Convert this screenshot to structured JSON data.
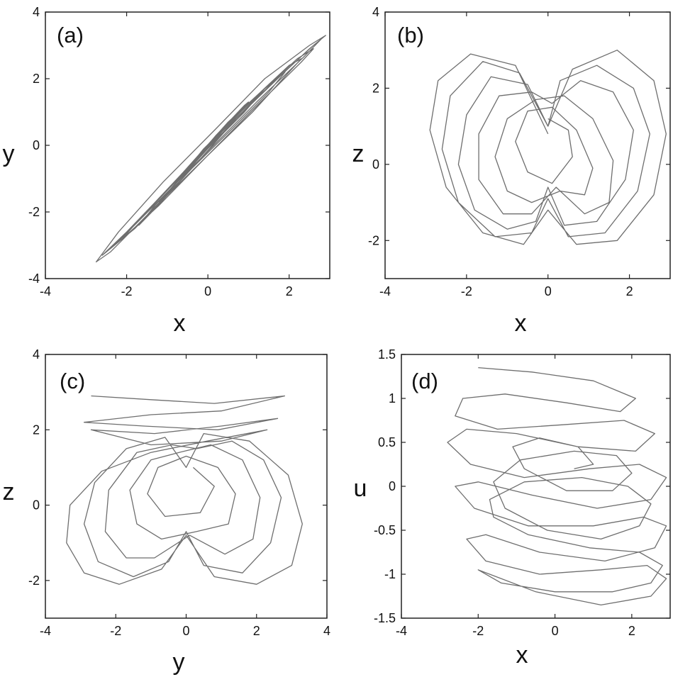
{
  "figure": {
    "line_color": "#6e6e6e",
    "axis_color": "#222222",
    "background": "#ffffff"
  },
  "chart_data": [
    {
      "type": "line",
      "panel_label": "(a)",
      "title": "",
      "xlabel": "x",
      "ylabel": "y",
      "xlim": [
        -4,
        3
      ],
      "ylim": [
        -4,
        4
      ],
      "xticks": [
        -4,
        -2,
        0,
        2
      ],
      "yticks": [
        -4,
        -2,
        0,
        2,
        4
      ],
      "grid": false,
      "projection": [
        "x",
        "y"
      ],
      "series": [
        {
          "x": [
            0,
            1.7,
            2.6,
            2.9,
            2.5,
            1.4,
            0.2,
            -1.1,
            -2.2,
            -2.75,
            -2.4,
            -1.5,
            -0.4,
            0.7,
            1.8,
            2.5,
            2.8,
            2.4,
            1.2,
            -0.1,
            -1.4,
            -2.3,
            -2.6,
            -2.0,
            -0.9,
            0.3,
            1.4,
            2.2,
            2.6,
            2.3,
            1.3,
            0.0,
            -1.2,
            -2.1,
            -2.4,
            -1.9,
            -0.8,
            0.4,
            1.3,
            2.0,
            2.3,
            2.0,
            1.1,
            0.0,
            -1.0,
            -1.8,
            -2.1,
            -1.6,
            -0.6,
            0.5,
            1.3,
            1.8,
            1.9,
            1.5,
            0.6,
            -0.4,
            -1.3,
            -1.7,
            -1.3,
            -0.3,
            0.7,
            1.3,
            1.4,
            0.9,
            0.0,
            -0.9,
            -1.2,
            -0.7,
            0.2,
            0.9,
            1.0,
            0.4,
            -0.4,
            -0.8,
            -0.4,
            0.3,
            0.6,
            0.2,
            -0.3,
            -0.1,
            0.4
          ],
          "y": [
            0,
            2.0,
            3.0,
            3.3,
            3.0,
            2.0,
            0.5,
            -1.1,
            -2.6,
            -3.5,
            -3.2,
            -2.1,
            -0.7,
            0.8,
            2.1,
            2.9,
            3.2,
            2.7,
            1.3,
            -0.3,
            -1.9,
            -3.0,
            -3.3,
            -2.6,
            -1.2,
            0.3,
            1.7,
            2.6,
            2.9,
            2.5,
            1.3,
            -0.3,
            -1.8,
            -2.8,
            -3.1,
            -2.5,
            -1.1,
            0.5,
            1.6,
            2.4,
            2.6,
            2.2,
            1.0,
            -0.3,
            -1.5,
            -2.5,
            -2.8,
            -2.1,
            -0.8,
            0.7,
            1.6,
            2.1,
            2.2,
            1.6,
            0.5,
            -0.7,
            -1.9,
            -2.4,
            -1.8,
            -0.5,
            0.9,
            1.6,
            1.7,
            1.0,
            -0.1,
            -1.3,
            -1.7,
            -1.0,
            0.3,
            1.2,
            1.3,
            0.5,
            -0.6,
            -1.1,
            -0.6,
            0.4,
            0.8,
            0.2,
            -0.4,
            -0.1,
            0.5
          ]
        }
      ]
    },
    {
      "type": "line",
      "panel_label": "(b)",
      "title": "",
      "xlabel": "x",
      "ylabel": "z",
      "xlim": [
        -4,
        3
      ],
      "ylim": [
        -3,
        4
      ],
      "xticks": [
        -4,
        -2,
        0,
        2
      ],
      "yticks": [
        -2,
        0,
        2,
        4
      ],
      "grid": false,
      "projection": [
        "x",
        "z"
      ],
      "series": [
        {
          "x": [
            0,
            -0.8,
            -1.9,
            -2.7,
            -2.9,
            -2.5,
            -1.6,
            -0.6,
            0,
            0.7,
            1.7,
            2.6,
            2.9,
            2.6,
            1.7,
            0.6,
            0,
            -0.7,
            -1.6,
            -2.4,
            -2.6,
            -2.2,
            -1.3,
            -0.4,
            0,
            0.5,
            1.4,
            2.2,
            2.5,
            2.1,
            1.2,
            0.3,
            0,
            -0.5,
            -1.4,
            -2.0,
            -2.2,
            -1.8,
            -1.0,
            -0.3,
            0,
            0.4,
            1.2,
            1.9,
            2.1,
            1.6,
            0.8,
            0.1,
            -0.4,
            -1.2,
            -1.7,
            -1.7,
            -1.1,
            -0.4,
            0.2,
            0.9,
            1.5,
            1.6,
            1.1,
            0.4,
            -0.3,
            -1.0,
            -1.3,
            -1.0,
            -0.4,
            0.3,
            0.9,
            1.1,
            0.7,
            0.1,
            -0.5,
            -0.8,
            -0.5,
            0.1,
            0.6,
            0.5,
            0
          ],
          "y": [
            0.8,
            2.6,
            2.9,
            2.2,
            0.9,
            -0.6,
            -1.8,
            -2.1,
            -1.2,
            -2.1,
            -2.0,
            -0.8,
            0.8,
            2.2,
            3.0,
            2.5,
            1.0,
            2.4,
            2.7,
            1.8,
            0.4,
            -1.0,
            -1.9,
            -1.8,
            -0.9,
            -1.9,
            -1.8,
            -0.7,
            0.8,
            2.0,
            2.6,
            2.2,
            1.0,
            2.1,
            2.3,
            1.3,
            0.0,
            -1.2,
            -1.7,
            -1.5,
            -0.6,
            -1.6,
            -1.5,
            -0.4,
            0.9,
            1.9,
            2.2,
            1.6,
            1.9,
            1.8,
            0.8,
            -0.4,
            -1.3,
            -1.3,
            -0.6,
            -1.3,
            -1.0,
            0.1,
            1.2,
            1.8,
            1.7,
            1.2,
            0.2,
            -0.7,
            -1.0,
            -0.7,
            -0.8,
            -0.1,
            0.9,
            1.5,
            1.4,
            0.6,
            -0.2,
            -0.5,
            0.2,
            0.9,
            1.2
          ]
        }
      ]
    },
    {
      "type": "line",
      "panel_label": "(c)",
      "title": "",
      "xlabel": "y",
      "ylabel": "z",
      "xlim": [
        -4,
        4
      ],
      "ylim": [
        -3,
        4
      ],
      "xticks": [
        -4,
        -2,
        0,
        2,
        4
      ],
      "yticks": [
        -2,
        0,
        2,
        4
      ],
      "grid": false,
      "projection": [
        "y",
        "z"
      ],
      "series": [
        {
          "x": [
            -2.7,
            -1.0,
            0.8,
            2.8,
            1.0,
            -1.0,
            -2.9,
            -1.2,
            0.9,
            2.6,
            1.0,
            -0.9,
            -2.7,
            -1.0,
            1.0,
            2.3,
            0.6,
            -1.0,
            -2.4,
            -3.3,
            -3.4,
            -2.9,
            -1.9,
            -0.7,
            0,
            0.8,
            2.0,
            3.0,
            3.3,
            2.9,
            1.8,
            0.5,
            0,
            -0.6,
            -1.7,
            -2.6,
            -2.9,
            -2.5,
            -1.5,
            -0.5,
            0,
            0.5,
            1.6,
            2.4,
            2.7,
            2.2,
            1.3,
            0.3,
            -0.4,
            -1.4,
            -2.2,
            -2.3,
            -1.7,
            -0.9,
            0.1,
            1.1,
            1.9,
            2.1,
            1.6,
            0.7,
            -0.2,
            -1.0,
            -1.6,
            -1.4,
            -0.7,
            0.3,
            1.2,
            1.4,
            0.9,
            0.0,
            -0.8,
            -1.1,
            -0.6,
            0.4,
            0.8,
            0.2
          ],
          "y": [
            2.9,
            2.8,
            2.7,
            2.9,
            2.5,
            2.4,
            2.2,
            2.1,
            2.0,
            2.3,
            2.1,
            1.9,
            2.0,
            1.6,
            1.7,
            2.0,
            1.7,
            1.4,
            0.9,
            0.0,
            -1.0,
            -1.8,
            -2.1,
            -1.7,
            -0.8,
            -1.9,
            -2.1,
            -1.6,
            -0.5,
            0.8,
            1.7,
            1.9,
            1.0,
            1.8,
            1.5,
            0.6,
            -0.5,
            -1.5,
            -1.9,
            -1.5,
            -0.7,
            -1.6,
            -1.8,
            -1.0,
            0.2,
            1.2,
            1.7,
            1.5,
            1.6,
            1.4,
            0.4,
            -0.7,
            -1.4,
            -1.4,
            -0.8,
            -1.3,
            -0.9,
            0.2,
            1.2,
            1.6,
            1.4,
            1.2,
            0.4,
            -0.5,
            -0.9,
            -0.7,
            -0.5,
            0.3,
            1.0,
            1.3,
            1.0,
            0.3,
            -0.3,
            -0.2,
            0.5,
            1.0
          ]
        }
      ]
    },
    {
      "type": "line",
      "panel_label": "(d)",
      "title": "",
      "xlabel": "x",
      "ylabel": "u",
      "xlim": [
        -4,
        3
      ],
      "ylim": [
        -1.5,
        1.5
      ],
      "xticks": [
        -4,
        -2,
        0,
        2
      ],
      "yticks": [
        -1.5,
        -1,
        -0.5,
        0,
        0.5,
        1,
        1.5
      ],
      "grid": false,
      "projection": [
        "x",
        "u"
      ],
      "series": [
        {
          "x": [
            -2.0,
            -0.6,
            1.0,
            2.1,
            1.7,
            0.3,
            -1.3,
            -2.4,
            -2.6,
            -1.5,
            0.2,
            1.8,
            2.6,
            2.1,
            0.6,
            -1.0,
            -2.3,
            -2.8,
            -2.2,
            -0.8,
            0.9,
            2.2,
            2.9,
            2.5,
            1.1,
            -0.6,
            -2.0,
            -2.6,
            -2.1,
            -0.7,
            1.0,
            2.3,
            2.9,
            2.6,
            1.3,
            -0.4,
            -1.8,
            -2.3,
            -1.8,
            -0.4,
            1.2,
            2.4,
            2.9,
            2.5,
            1.2,
            -0.5,
            -1.7,
            -2.0,
            -1.4,
            0.0,
            1.5,
            2.5,
            2.8,
            2.2,
            0.9,
            -0.7,
            -1.6,
            -1.7,
            -0.8,
            0.7,
            1.9,
            2.5,
            2.2,
            1.2,
            -0.2,
            -1.3,
            -1.6,
            -0.9,
            0.5,
            1.6,
            2.0,
            1.5,
            0.3,
            -0.8,
            -1.1,
            -0.4,
            0.6,
            1.0,
            0.5
          ],
          "y": [
            1.35,
            1.3,
            1.2,
            1.0,
            0.85,
            0.95,
            1.05,
            1.0,
            0.8,
            0.65,
            0.7,
            0.75,
            0.6,
            0.4,
            0.45,
            0.6,
            0.65,
            0.5,
            0.25,
            0.1,
            0.2,
            0.25,
            0.1,
            -0.15,
            -0.25,
            -0.1,
            0.05,
            0.0,
            -0.25,
            -0.45,
            -0.45,
            -0.35,
            -0.45,
            -0.7,
            -0.85,
            -0.75,
            -0.55,
            -0.6,
            -0.85,
            -1.0,
            -0.95,
            -0.9,
            -1.05,
            -1.25,
            -1.35,
            -1.2,
            -1.0,
            -0.95,
            -1.1,
            -1.2,
            -1.2,
            -1.1,
            -0.9,
            -0.75,
            -0.7,
            -0.55,
            -0.35,
            -0.15,
            0.05,
            0.1,
            0.0,
            -0.2,
            -0.45,
            -0.6,
            -0.5,
            -0.25,
            0.05,
            0.3,
            0.4,
            0.35,
            0.15,
            -0.05,
            -0.05,
            0.2,
            0.45,
            0.55,
            0.45,
            0.25,
            0.2
          ]
        }
      ]
    }
  ]
}
